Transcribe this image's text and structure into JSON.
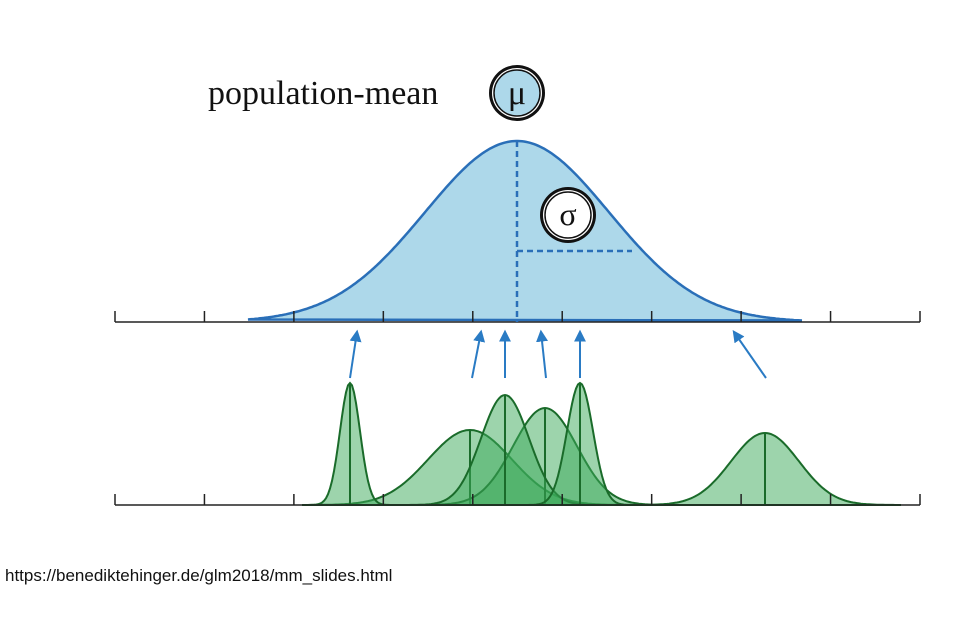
{
  "diagram": {
    "label": "population-mean",
    "mu_symbol": "μ",
    "sigma_symbol": "σ"
  },
  "footer": {
    "source": "https://benediktehinger.de/glm2018/mm_slides.html"
  }
}
